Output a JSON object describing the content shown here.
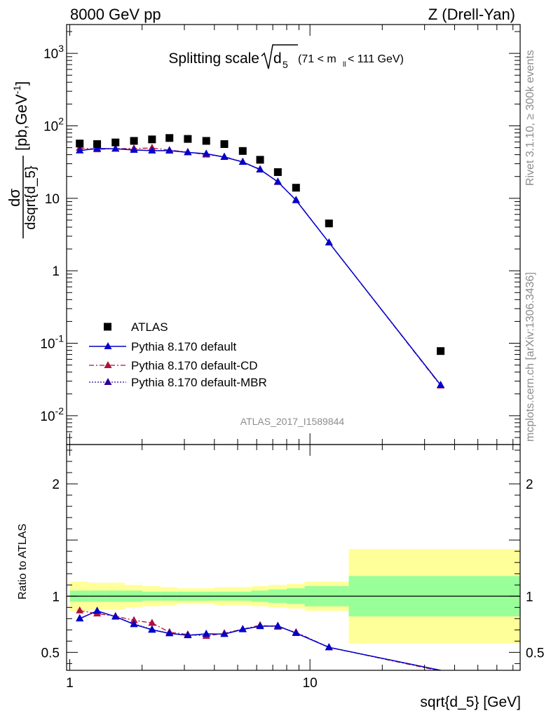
{
  "header": {
    "left": "8000 GeV pp",
    "right": "Z (Drell-Yan)"
  },
  "plot_title": {
    "main": "Splitting scale",
    "sqrt_arg": "d",
    "sqrt_sub": "5",
    "range_prefix": "(71 < m",
    "range_sub": "ll",
    "range_suffix": " < 111 GeV)"
  },
  "ylabel": {
    "num": "dσ",
    "den": "dsqrt{d_5}",
    "unit_open": "[pb,GeV",
    "unit_sup": "-1",
    "unit_close": "]"
  },
  "ratio_ylabel": "Ratio to ATLAS",
  "xlabel": "sqrt{d_5} [GeV]",
  "side_text": {
    "rivet": "Rivet 3.1.10, ≥ 300k events",
    "mcplots": "mcplots.cern.ch [arXiv:1306.3436]"
  },
  "watermark": "ATLAS_2017_I1589844",
  "colors": {
    "data": "#000000",
    "default": "#0000cc",
    "cd": "#b0103c",
    "mbr": "#2a0099",
    "band_inner": "#99ff99",
    "band_outer": "#ffff99"
  },
  "chart_data": {
    "type": "scatter",
    "x_scale": "log",
    "y_scale": "log",
    "xlim": [
      0.97,
      75
    ],
    "ylim": [
      0.004,
      2500
    ],
    "ratio_ylim": [
      0.34,
      2.35
    ],
    "ticks": {
      "x_major": [
        {
          "v": 1,
          "t": "1"
        },
        {
          "v": 10,
          "t": "10"
        }
      ],
      "y_main": [
        {
          "v": 0.01,
          "b": "10",
          "e": "-2"
        },
        {
          "v": 0.1,
          "b": "10",
          "e": "-1"
        },
        {
          "v": 1,
          "b": "1",
          "e": ""
        },
        {
          "v": 10,
          "b": "10",
          "e": ""
        },
        {
          "v": 100,
          "b": "10",
          "e": "2"
        },
        {
          "v": 1000,
          "b": "10",
          "e": "3"
        }
      ],
      "y_ratio": [
        {
          "v": 0.5,
          "t": "0.5"
        },
        {
          "v": 1,
          "t": "1"
        },
        {
          "v": 2,
          "t": "2"
        }
      ]
    },
    "bins": [
      {
        "lo": 1.0,
        "hi": 1.2,
        "x": 1.1,
        "y": 57,
        "inner": 0.05,
        "outer": 0.13
      },
      {
        "lo": 1.2,
        "hi": 1.4,
        "x": 1.3,
        "y": 56,
        "inner": 0.05,
        "outer": 0.12
      },
      {
        "lo": 1.4,
        "hi": 1.7,
        "x": 1.55,
        "y": 59,
        "inner": 0.05,
        "outer": 0.12
      },
      {
        "lo": 1.7,
        "hi": 2.0,
        "x": 1.85,
        "y": 62,
        "inner": 0.05,
        "outer": 0.1
      },
      {
        "lo": 2.0,
        "hi": 2.4,
        "x": 2.2,
        "y": 65,
        "inner": 0.04,
        "outer": 0.09
      },
      {
        "lo": 2.4,
        "hi": 2.8,
        "x": 2.6,
        "y": 68,
        "inner": 0.04,
        "outer": 0.08
      },
      {
        "lo": 2.8,
        "hi": 3.4,
        "x": 3.1,
        "y": 66,
        "inner": 0.04,
        "outer": 0.07
      },
      {
        "lo": 3.4,
        "hi": 4.0,
        "x": 3.7,
        "y": 62,
        "inner": 0.04,
        "outer": 0.07
      },
      {
        "lo": 4.0,
        "hi": 4.8,
        "x": 4.4,
        "y": 56,
        "inner": 0.04,
        "outer": 0.08
      },
      {
        "lo": 4.8,
        "hi": 5.7,
        "x": 5.25,
        "y": 45,
        "inner": 0.04,
        "outer": 0.08
      },
      {
        "lo": 5.7,
        "hi": 6.7,
        "x": 6.2,
        "y": 34,
        "inner": 0.05,
        "outer": 0.09
      },
      {
        "lo": 6.7,
        "hi": 8.0,
        "x": 7.35,
        "y": 23,
        "inner": 0.06,
        "outer": 0.1
      },
      {
        "lo": 8.0,
        "hi": 9.5,
        "x": 8.75,
        "y": 14,
        "inner": 0.07,
        "outer": 0.11
      },
      {
        "lo": 9.5,
        "hi": 14.5,
        "x": 12.0,
        "y": 4.5,
        "inner": 0.09,
        "outer": 0.13
      },
      {
        "lo": 14.5,
        "hi": 75.0,
        "x": 35.0,
        "y": 0.078,
        "inner": 0.18,
        "outer": 0.42
      }
    ],
    "series": [
      {
        "name": "ATLAS",
        "style": "data",
        "values": [
          57,
          56,
          59,
          62,
          65,
          68,
          66,
          62,
          56,
          45,
          34,
          23,
          14,
          4.5,
          0.078
        ]
      },
      {
        "name": "Pythia 8.170 default",
        "style": "default",
        "values": [
          45.6,
          48.7,
          48.2,
          46.5,
          45.5,
          45.5,
          43.0,
          41.2,
          37.1,
          31.7,
          24.9,
          16.9,
          9.4,
          2.45,
          0.0265
        ]
      },
      {
        "name": "Pythia 8.170 default-CD",
        "style": "cd",
        "values": [
          49.7,
          47.3,
          48.5,
          48.7,
          49.5,
          46.2,
          43.5,
          40.0,
          37.5,
          31.8,
          25.2,
          16.7,
          9.5,
          2.45,
          0.026
        ]
      },
      {
        "name": "Pythia 8.170 default-MBR",
        "style": "mbr",
        "values": [
          45.8,
          48.5,
          48.3,
          46.7,
          45.8,
          45.5,
          43.2,
          41.0,
          37.2,
          31.8,
          24.9,
          16.9,
          9.4,
          2.45,
          0.0265
        ]
      }
    ]
  }
}
